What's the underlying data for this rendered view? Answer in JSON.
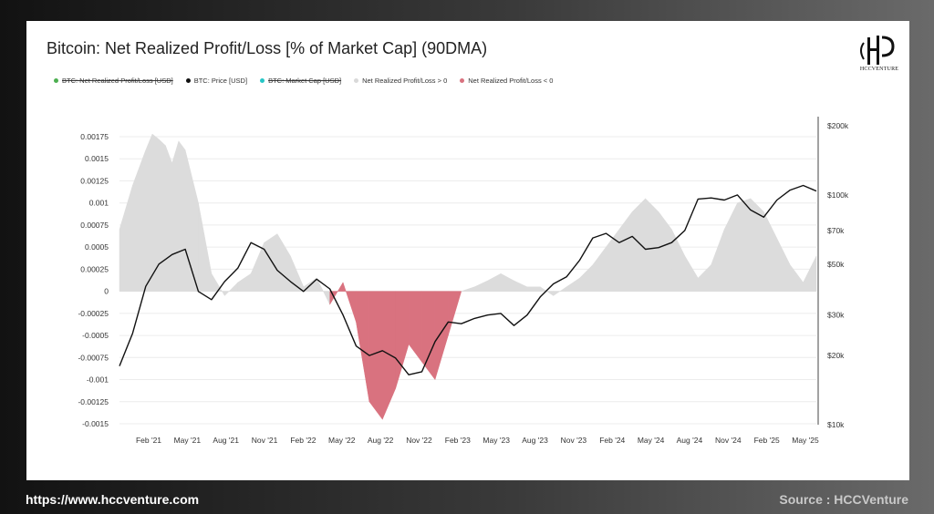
{
  "footer": {
    "url": "https://www.hccventure.com",
    "source": "Source : HCCVenture"
  },
  "logo": {
    "text": "HCCVENTURE",
    "mark": "HCC monogram"
  },
  "chart_data": {
    "type": "area",
    "title": "Bitcoin: Net Realized Profit/Loss [% of Market Cap] (90DMA)",
    "legend": [
      {
        "label": "BTC: Net Realized Profit/Loss [USD]",
        "color": "#4caf50",
        "active": false
      },
      {
        "label": "BTC: Price [USD]",
        "color": "#111111",
        "active": true
      },
      {
        "label": "BTC: Market Cap [USD]",
        "color": "#26c6c6",
        "active": false
      },
      {
        "label": "Net Realized Profit/Loss > 0",
        "color": "#d9d9d9",
        "active": true
      },
      {
        "label": "Net Realized Profit/Loss < 0",
        "color": "#d9727f",
        "active": true
      }
    ],
    "x_ticks": [
      "Feb '21",
      "May '21",
      "Aug '21",
      "Nov '21",
      "Feb '22",
      "May '22",
      "Aug '22",
      "Nov '22",
      "Feb '23",
      "May '23",
      "Aug '23",
      "Nov '23",
      "Feb '24",
      "May '24",
      "Aug '24",
      "Nov '24",
      "Feb '25",
      "May '25"
    ],
    "x_range": [
      0,
      53
    ],
    "y_left": {
      "ticks": [
        0.00175,
        0.0015,
        0.00125,
        0.001,
        0.00075,
        0.0005,
        0.00025,
        0,
        -0.00025,
        -0.0005,
        -0.00075,
        -0.001,
        -0.00125,
        -0.0015
      ],
      "tick_labels": [
        "0.00175",
        "0.0015",
        "0.00125",
        "0.001",
        "0.00075",
        "0.0005",
        "0.00025",
        "0",
        "-0.00025",
        "-0.0005",
        "-0.00075",
        "-0.001",
        "-0.00125",
        "-0.0015"
      ],
      "range": [
        -0.0015,
        0.0019
      ]
    },
    "y_right": {
      "scale": "log",
      "ticks": [
        200000,
        100000,
        70000,
        50000,
        30000,
        20000,
        10000
      ],
      "tick_labels": [
        "$200k",
        "$100k",
        "$70k",
        "$50k",
        "$30k",
        "$20k",
        "$10k"
      ],
      "range": [
        10000,
        200000
      ]
    },
    "grid": true,
    "series": [
      {
        "name": "Net Realized Profit/Loss",
        "axis": "left",
        "x": [
          0,
          1,
          2,
          2.5,
          3,
          3.5,
          4,
          4.5,
          5,
          6,
          7,
          8,
          9,
          10,
          11,
          12,
          13,
          14,
          15,
          16,
          17,
          18,
          19,
          20,
          21,
          22,
          23,
          24,
          25,
          26,
          27,
          28,
          29,
          30,
          31,
          32,
          33,
          34,
          35,
          36,
          37,
          38,
          39,
          40,
          41,
          42,
          43,
          44,
          45,
          46,
          47,
          48,
          49,
          50,
          51,
          52,
          53
        ],
        "y": [
          0.0007,
          0.0012,
          0.0016,
          0.00178,
          0.00172,
          0.00165,
          0.00145,
          0.0017,
          0.0016,
          0.001,
          0.0002,
          -5e-05,
          0.0001,
          0.0002,
          0.00055,
          0.00065,
          0.0004,
          5e-05,
          0.00015,
          -0.00015,
          0.0001,
          -0.00035,
          -0.00125,
          -0.00145,
          -0.0011,
          -0.0006,
          -0.0008,
          -0.001,
          -0.0005,
          0.0,
          5e-05,
          0.00012,
          0.0002,
          0.00012,
          5e-05,
          5e-05,
          -5e-05,
          5e-05,
          0.00015,
          0.0003,
          0.0005,
          0.0007,
          0.0009,
          0.00105,
          0.0009,
          0.0007,
          0.0004,
          0.00015,
          0.0003,
          0.0007,
          0.001,
          0.00105,
          0.0009,
          0.0006,
          0.0003,
          0.0001,
          0.0004
        ]
      },
      {
        "name": "BTC: Price [USD]",
        "axis": "right",
        "x": [
          0,
          1,
          2,
          3,
          4,
          5,
          6,
          7,
          8,
          9,
          10,
          11,
          12,
          13,
          14,
          15,
          16,
          17,
          18,
          19,
          20,
          21,
          22,
          23,
          24,
          25,
          26,
          27,
          28,
          29,
          30,
          31,
          32,
          33,
          34,
          35,
          36,
          37,
          38,
          39,
          40,
          41,
          42,
          43,
          44,
          45,
          46,
          47,
          48,
          49,
          50,
          51,
          52,
          53
        ],
        "y": [
          18000,
          25000,
          40000,
          50000,
          55000,
          58000,
          38000,
          35000,
          42000,
          48000,
          62000,
          58000,
          47000,
          42000,
          38000,
          43000,
          39000,
          30000,
          22000,
          20000,
          21000,
          19500,
          16500,
          17000,
          23000,
          28000,
          27500,
          29000,
          30000,
          30500,
          27000,
          30000,
          36000,
          41000,
          44000,
          52000,
          65000,
          68000,
          62000,
          66000,
          58000,
          59000,
          62000,
          70000,
          96000,
          97000,
          95000,
          100000,
          86000,
          80000,
          95000,
          105000,
          110000,
          104000
        ]
      }
    ]
  }
}
